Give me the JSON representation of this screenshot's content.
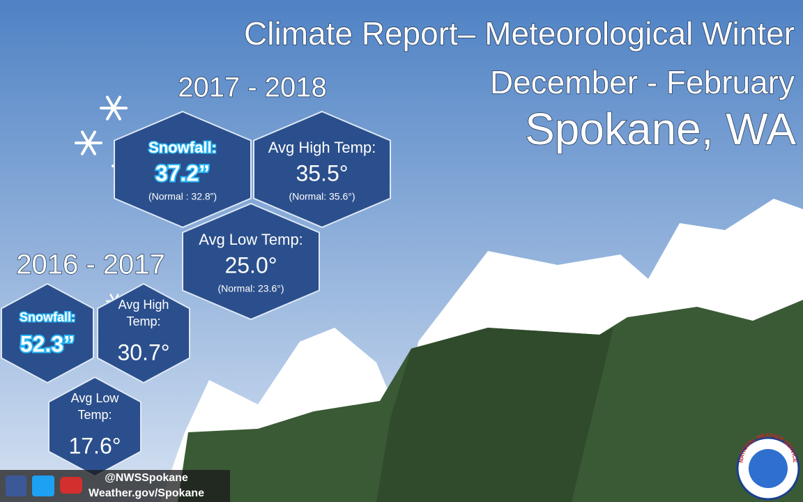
{
  "header": {
    "title": "Climate Report– Meteorological Winter",
    "subtitle": "December - February",
    "location": "Spokane, WA"
  },
  "seasons": [
    {
      "label": "2017 - 2018",
      "stats": [
        {
          "label": [
            "Snowfall:"
          ],
          "value": "37.2”",
          "normal": "(Normal : 32.8”)"
        },
        {
          "label": [
            "Avg  High Temp:"
          ],
          "value": "35.5°",
          "normal": "(Normal: 35.6°)"
        },
        {
          "label": [
            "Avg  Low Temp:"
          ],
          "value": "25.0°",
          "normal": "(Normal: 23.6°)"
        }
      ]
    },
    {
      "label": "2016 - 2017",
      "stats": [
        {
          "label": [
            "Snowfall:"
          ],
          "value": "52.3”"
        },
        {
          "label": [
            "Avg  High",
            "Temp:"
          ],
          "value": "30.7°"
        },
        {
          "label": [
            "Avg  Low",
            "Temp:"
          ],
          "value": "17.6°"
        }
      ]
    }
  ],
  "footer": {
    "handle": "@NWSSpokane",
    "website": "Weather.gov/Spokane"
  },
  "logo": {
    "text": "NATIONAL WEATHER SERVICE"
  }
}
